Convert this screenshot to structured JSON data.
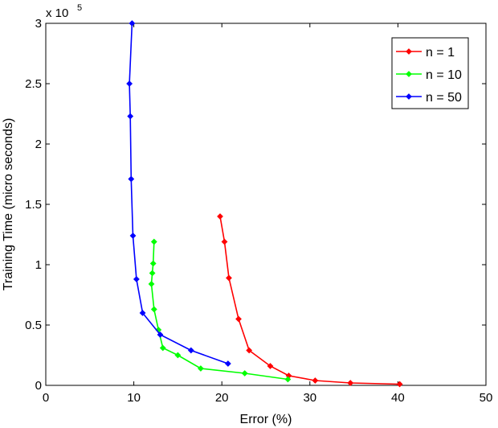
{
  "chart_data": {
    "type": "line",
    "xlabel": "Error (%)",
    "ylabel": "Training Time (micro seconds)",
    "y_multiplier_label": "x 10",
    "y_multiplier_exponent": "5",
    "xlim": [
      0,
      50
    ],
    "ylim": [
      0,
      3
    ],
    "x_ticks": [
      0,
      10,
      20,
      30,
      40,
      50
    ],
    "y_ticks": [
      0,
      0.5,
      1,
      1.5,
      2,
      2.5,
      3
    ],
    "x_tick_labels": [
      "0",
      "10",
      "20",
      "30",
      "40",
      "50"
    ],
    "y_tick_labels": [
      "0",
      "0.5",
      "1",
      "1.5",
      "2",
      "2.5",
      "3"
    ],
    "grid": false,
    "legend_position": "top-right",
    "series": [
      {
        "name": "n = 1",
        "color": "#ff0000",
        "x": [
          19.8,
          20.3,
          20.8,
          21.9,
          23.1,
          25.5,
          27.6,
          30.6,
          34.6,
          40.2
        ],
        "y": [
          1.4,
          1.19,
          0.89,
          0.55,
          0.29,
          0.16,
          0.08,
          0.04,
          0.02,
          0.01
        ]
      },
      {
        "name": "n = 10",
        "color": "#00ff00",
        "x": [
          12.3,
          12.2,
          12.1,
          12.0,
          12.3,
          12.8,
          13.3,
          15.0,
          17.6,
          22.6,
          27.5
        ],
        "y": [
          1.19,
          1.01,
          0.93,
          0.84,
          0.63,
          0.46,
          0.31,
          0.25,
          0.14,
          0.1,
          0.05
        ]
      },
      {
        "name": "n = 50",
        "color": "#0000ff",
        "x": [
          9.8,
          9.5,
          9.6,
          9.7,
          9.9,
          10.3,
          11.0,
          13.0,
          16.5,
          20.7
        ],
        "y": [
          3.0,
          2.5,
          2.23,
          1.71,
          1.24,
          0.88,
          0.6,
          0.42,
          0.29,
          0.18
        ]
      }
    ]
  }
}
